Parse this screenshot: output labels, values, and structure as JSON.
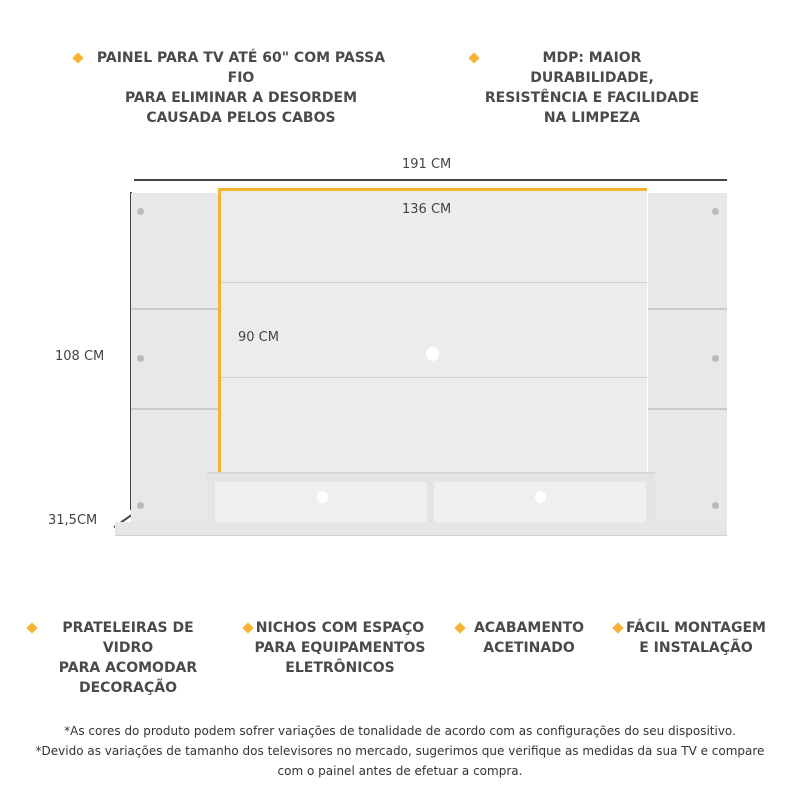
{
  "features_top": [
    {
      "lines": [
        "PAINEL PARA TV ATÉ 60\" COM PASSA FIO",
        "PARA ELIMINAR A DESORDEM",
        "CAUSADA PELOS CABOS"
      ]
    },
    {
      "lines": [
        "MDP: MAIOR DURABILIDADE,",
        "RESISTÊNCIA E FACILIDADE",
        "NA LIMPEZA"
      ]
    }
  ],
  "dimensions": {
    "width_total": "191 CM",
    "width_panel": "136 CM",
    "height_panel": "90 CM",
    "height_total": "108 CM",
    "depth": "31,5CM"
  },
  "features_bottom": [
    {
      "lines": [
        "PRATELEIRAS DE VIDRO",
        "PARA ACOMODAR",
        "DECORAÇÃO"
      ]
    },
    {
      "lines": [
        "NICHOS COM ESPAÇO",
        "PARA EQUIPAMENTOS",
        "ELETRÔNICOS"
      ]
    },
    {
      "lines": [
        "ACABAMENTO",
        "ACETINADO"
      ]
    },
    {
      "lines": [
        "FÁCIL MONTAGEM",
        "E INSTALAÇÃO"
      ]
    }
  ],
  "notes": [
    "*As cores do produto podem sofrer variações de tonalidade de acordo com as configurações do seu dispositivo.",
    "*Devido as variações de tamanho dos televisores no mercado, sugerimos que verifique as medidas da sua TV e compare",
    "com o painel antes de efetuar a compra."
  ],
  "colors": {
    "accent": "#f5b335",
    "panel": "#e6e6e6",
    "text": "#4a4a4a"
  }
}
